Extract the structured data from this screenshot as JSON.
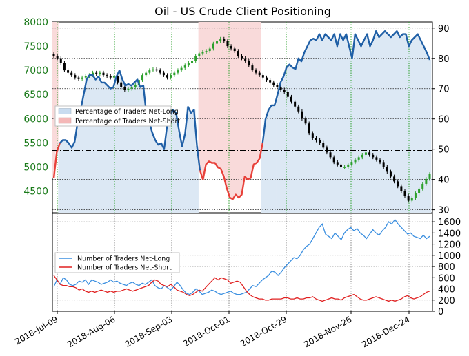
{
  "title": "Oil - US Crude Client Positioning",
  "colors": {
    "price_up": "#2ca02c",
    "price_down": "#000000",
    "net_long_line": "#1f5fa6",
    "net_short_line": "#e8413a",
    "net_long_fill": "#dce8f4",
    "net_short_fill": "#f9dada",
    "count_long": "#3b8fe0",
    "count_short": "#e02020",
    "grid": "#2ca02c",
    "hline": "#000000"
  },
  "legend_top": [
    {
      "label": "Percentage of Traders Net-Long",
      "color": "#c8dcf0"
    },
    {
      "label": "Percentage of Traders Net-Short",
      "color": "#f4b8b8"
    }
  ],
  "legend_bottom": [
    {
      "label": "Number of Traders Net-Long",
      "color": "#3b8fe0"
    },
    {
      "label": "Number of Traders Net-Short",
      "color": "#e02020"
    }
  ],
  "x_ticks": [
    "2018-Jul-09",
    "2018-Aug-06",
    "2018-Sep-03",
    "2018-Oct-01",
    "2018-Oct-29",
    "2018-Nov-26",
    "2018-Dec-24"
  ],
  "left_ticks": [
    "8000",
    "7500",
    "7000",
    "6500",
    "6000",
    "5500",
    "5000",
    "4500"
  ],
  "right_ticks": [
    "90",
    "80",
    "70",
    "60",
    "50",
    "40",
    "30"
  ],
  "bottom_ticks": [
    "1600",
    "1400",
    "1200",
    "1000",
    "800",
    "600",
    "400",
    "200",
    "0"
  ],
  "chart_data": [
    {
      "type": "line",
      "title": "Oil - US Crude Client Positioning",
      "x_range": [
        "2018-07-09",
        "2018-12-31"
      ],
      "left_axis": {
        "label": "",
        "ylim": [
          4050,
          8000
        ],
        "ticks": [
          8000,
          7500,
          7000,
          6500,
          6000,
          5500,
          5000,
          4500
        ]
      },
      "right_axis": {
        "label": "",
        "ylim": [
          29,
          92
        ],
        "ticks": [
          90,
          80,
          70,
          60,
          50,
          40,
          30
        ]
      },
      "reference_line": 50,
      "grid": true,
      "legend_position": "left",
      "price_ohlc_close": [
        7300,
        7250,
        7150,
        7000,
        6950,
        6900,
        6850,
        6820,
        6850,
        6880,
        6900,
        6950,
        6920,
        6950,
        6900,
        6880,
        6850,
        6880,
        6750,
        6650,
        6600,
        6620,
        6650,
        6700,
        6800,
        6900,
        6950,
        7000,
        7020,
        7000,
        6950,
        6900,
        6850,
        6900,
        6950,
        7000,
        7050,
        7100,
        7150,
        7200,
        7300,
        7350,
        7380,
        7400,
        7450,
        7550,
        7600,
        7650,
        7600,
        7500,
        7450,
        7400,
        7300,
        7250,
        7200,
        7100,
        7000,
        6950,
        6900,
        6850,
        6800,
        6750,
        6700,
        6650,
        6600,
        6550,
        6450,
        6350,
        6250,
        6150,
        6000,
        5900,
        5700,
        5600,
        5550,
        5500,
        5400,
        5300,
        5200,
        5100,
        5050,
        5000,
        5000,
        5050,
        5100,
        5150,
        5200,
        5250,
        5300,
        5250,
        5200,
        5150,
        5100,
        5000,
        4900,
        4800,
        4700,
        4600,
        4500,
        4400,
        4300,
        4350,
        4450,
        4550,
        4650,
        4750,
        4850
      ],
      "series": [
        {
          "name": "Percentage of Traders Net-Long",
          "values": [
            40.5,
            49,
            52,
            53,
            53,
            52,
            50.5,
            52.5,
            59,
            63,
            68,
            73,
            74.5,
            74.5,
            73,
            74,
            72,
            72,
            71,
            70,
            70.5,
            74,
            76,
            73,
            71,
            71.5,
            71,
            72,
            73,
            70.5,
            71,
            62,
            59,
            55.5,
            53,
            51.5,
            52,
            50,
            58,
            61,
            63,
            62,
            56,
            51,
            55,
            64,
            62,
            63,
            51,
            43,
            40,
            45,
            46,
            45.5,
            45.5,
            44,
            43.5,
            41,
            37,
            34,
            33.5,
            35,
            34,
            35,
            41,
            40,
            40.5,
            45,
            45.5,
            47,
            52,
            60,
            63,
            64.5,
            64.5,
            68,
            72,
            74,
            77,
            78,
            77,
            76.5,
            80,
            79,
            82,
            84,
            86,
            86.5,
            86,
            88,
            86,
            88,
            87,
            86,
            88,
            84,
            88,
            86,
            88,
            84,
            80,
            88,
            86,
            84,
            86,
            88,
            84,
            86,
            89,
            87,
            88,
            89,
            88,
            87,
            88,
            89,
            87,
            88,
            88,
            84,
            86,
            87,
            88,
            86,
            84,
            82,
            79.5
          ]
        }
      ]
    },
    {
      "type": "line",
      "ylim": [
        0,
        1700
      ],
      "series": [
        {
          "name": "Number of Traders Net-Long",
          "values": [
            440,
            560,
            480,
            600,
            560,
            480,
            460,
            480,
            540,
            520,
            560,
            480,
            560,
            540,
            520,
            480,
            500,
            520,
            560,
            520,
            540,
            500,
            480,
            460,
            500,
            520,
            480,
            460,
            500,
            480,
            520,
            560,
            460,
            420,
            400,
            460,
            420,
            380,
            440,
            520,
            460,
            380,
            320,
            300,
            340,
            400,
            360,
            300,
            320,
            340,
            380,
            360,
            320,
            300,
            320,
            340,
            360,
            320,
            300,
            300,
            320,
            340,
            400,
            460,
            440,
            500,
            560,
            600,
            640,
            720,
            700,
            640,
            700,
            780,
            840,
            900,
            960,
            940,
            1000,
            1100,
            1160,
            1200,
            1300,
            1400,
            1500,
            1560,
            1380,
            1340,
            1300,
            1400,
            1340,
            1280,
            1400,
            1460,
            1500,
            1440,
            1480,
            1400,
            1360,
            1300,
            1380,
            1460,
            1400,
            1360,
            1440,
            1500,
            1600,
            1560,
            1640,
            1560,
            1500,
            1440,
            1380,
            1400,
            1340,
            1320,
            1300,
            1360,
            1300,
            1340
          ]
        },
        {
          "name": "Number of Traders Net-Short",
          "values": [
            640,
            560,
            480,
            460,
            460,
            440,
            440,
            420,
            380,
            400,
            360,
            340,
            360,
            340,
            360,
            380,
            360,
            340,
            360,
            340,
            360,
            360,
            380,
            400,
            380,
            360,
            380,
            400,
            420,
            440,
            460,
            520,
            560,
            540,
            480,
            460,
            440,
            480,
            440,
            380,
            360,
            340,
            300,
            280,
            300,
            340,
            380,
            360,
            420,
            480,
            540,
            600,
            560,
            600,
            580,
            560,
            500,
            520,
            540,
            520,
            440,
            360,
            300,
            260,
            240,
            220,
            220,
            200,
            200,
            220,
            220,
            220,
            220,
            240,
            240,
            220,
            220,
            240,
            220,
            220,
            240,
            240,
            260,
            220,
            200,
            180,
            200,
            220,
            240,
            220,
            220,
            200,
            240,
            260,
            280,
            300,
            260,
            220,
            200,
            200,
            220,
            240,
            260,
            240,
            220,
            200,
            180,
            200,
            180,
            200,
            220,
            260,
            280,
            240,
            220,
            240,
            260,
            300,
            340,
            360
          ]
        }
      ]
    }
  ]
}
